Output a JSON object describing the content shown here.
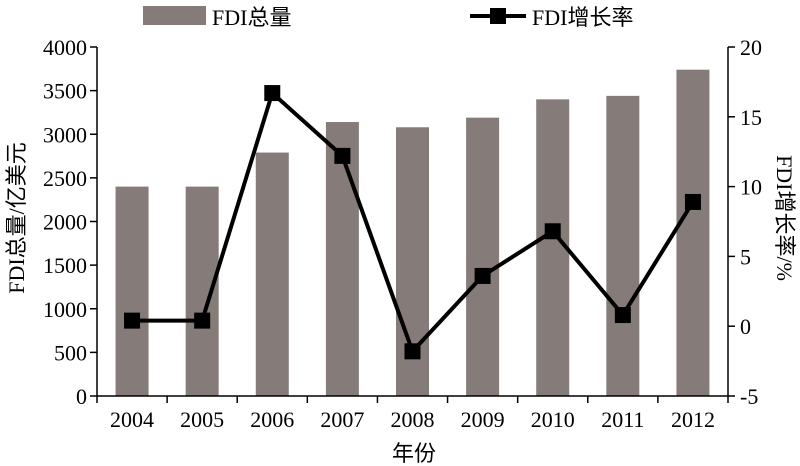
{
  "chart_data": {
    "type": "bar+line",
    "categories": [
      "2004",
      "2005",
      "2006",
      "2007",
      "2008",
      "2009",
      "2010",
      "2011",
      "2012"
    ],
    "series": [
      {
        "name": "FDI总量",
        "kind": "bar",
        "axis": "left",
        "color": "#857B79",
        "values": [
          2400,
          2400,
          2790,
          3140,
          3080,
          3190,
          3400,
          3440,
          3740
        ]
      },
      {
        "name": "FDI增长率",
        "kind": "line",
        "axis": "right",
        "color": "#000000",
        "marker": "square",
        "values": [
          0.4,
          0.4,
          16.7,
          12.2,
          -1.8,
          3.6,
          6.8,
          0.8,
          8.9
        ]
      }
    ],
    "xlabel": "年份",
    "ylabel_left": "FDI总量/亿美元",
    "ylabel_right": "FDI增长率/%",
    "ylim_left": [
      0,
      4000
    ],
    "yticks_left": [
      0,
      500,
      1000,
      1500,
      2000,
      2500,
      3000,
      3500,
      4000
    ],
    "ylim_right": [
      -5,
      20
    ],
    "yticks_right": [
      -5,
      0,
      5,
      10,
      15,
      20
    ],
    "grid": false,
    "legend_position": "top"
  }
}
